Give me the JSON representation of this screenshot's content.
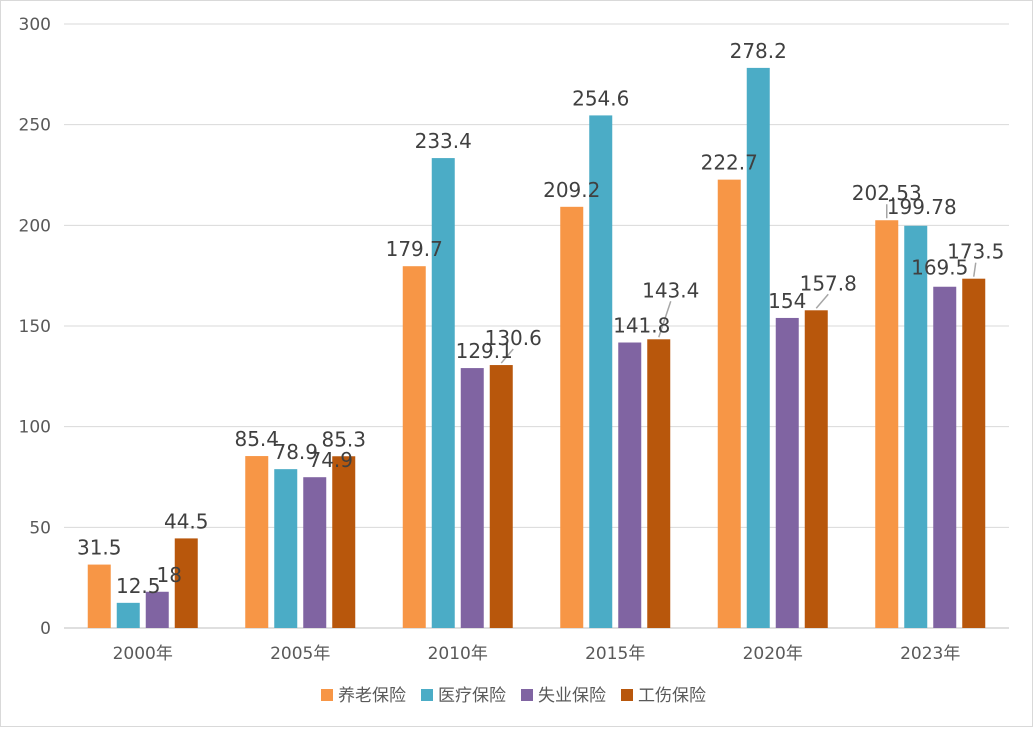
{
  "chart_data": {
    "type": "bar",
    "categories": [
      "2000年",
      "2005年",
      "2010年",
      "2015年",
      "2020年",
      "2023年"
    ],
    "series": [
      {
        "name": "养老保险",
        "color": "#F79646",
        "values": [
          31.5,
          85.4,
          179.7,
          209.2,
          222.7,
          202.53
        ]
      },
      {
        "name": "医疗保险",
        "color": "#4BACC6",
        "values": [
          12.5,
          78.9,
          233.4,
          254.6,
          278.2,
          199.78
        ]
      },
      {
        "name": "失业保险",
        "color": "#8064A2",
        "values": [
          18,
          74.9,
          129.1,
          141.8,
          154,
          169.5
        ]
      },
      {
        "name": "工伤保险",
        "color": "#B8570C",
        "values": [
          44.5,
          85.3,
          130.6,
          143.4,
          157.8,
          173.5
        ]
      }
    ],
    "y_ticks": [
      "0",
      "50",
      "100",
      "150",
      "200",
      "250",
      "300"
    ],
    "ylim": [
      0,
      300
    ],
    "grid": true,
    "legend_position": "bottom"
  }
}
